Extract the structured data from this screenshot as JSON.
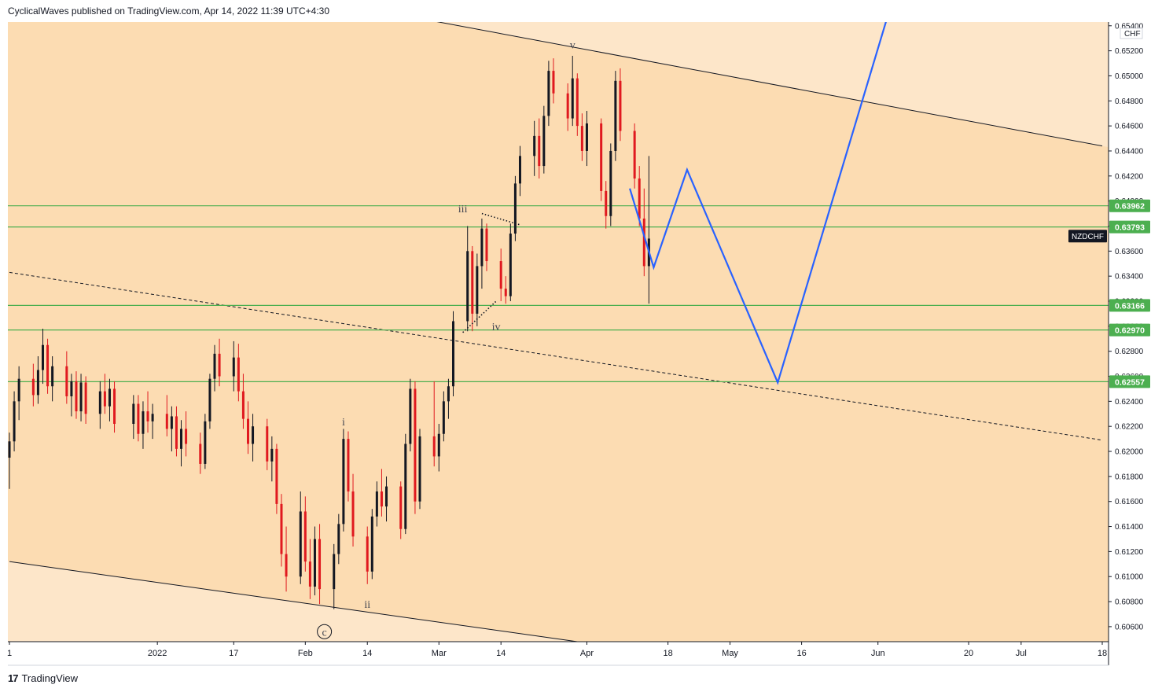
{
  "header": {
    "publisher_line": "CyclicalWaves published on TradingView.com, Apr 14, 2022 11:39 UTC+4:30"
  },
  "footer": {
    "logo_glyph": "17",
    "brand": "TradingView"
  },
  "colors": {
    "background_inside": "#fcdcb2",
    "background_outside": "#fde6c9",
    "candle_up": "#131722",
    "candle_down": "#e0191f",
    "hline": "#4caf50",
    "projection": "#2962ff",
    "channel": "#131722"
  },
  "chart_data": {
    "type": "candlestick",
    "symbol": "NZDCHF",
    "currency": "CHF",
    "ylim": [
      0.6048,
      0.6543
    ],
    "y_ticks": [
      "0.60600",
      "0.60800",
      "0.61000",
      "0.61200",
      "0.61400",
      "0.61600",
      "0.61800",
      "0.62000",
      "0.62200",
      "0.62400",
      "0.62600",
      "0.62800",
      "0.63000",
      "0.63200",
      "0.63400",
      "0.63600",
      "0.63800",
      "0.64000",
      "0.64200",
      "0.64400",
      "0.64600",
      "0.64800",
      "0.65000",
      "0.65200",
      "0.65400"
    ],
    "x_ticks": [
      {
        "label": "1",
        "date": "2021-12-01"
      },
      {
        "label": "2022",
        "date": "2022-01-01"
      },
      {
        "label": "17",
        "date": "2022-01-17"
      },
      {
        "label": "Feb",
        "date": "2022-02-01"
      },
      {
        "label": "14",
        "date": "2022-02-14"
      },
      {
        "label": "Mar",
        "date": "2022-03-01"
      },
      {
        "label": "14",
        "date": "2022-03-14"
      },
      {
        "label": "Apr",
        "date": "2022-04-01"
      },
      {
        "label": "18",
        "date": "2022-04-18"
      },
      {
        "label": "May",
        "date": "2022-05-01"
      },
      {
        "label": "16",
        "date": "2022-05-16"
      },
      {
        "label": "Jun",
        "date": "2022-06-01"
      },
      {
        "label": "20",
        "date": "2022-06-20"
      },
      {
        "label": "Jul",
        "date": "2022-07-01"
      },
      {
        "label": "18",
        "date": "2022-07-18"
      }
    ],
    "horizontal_levels": [
      {
        "value": 0.63962,
        "label": "0.63962"
      },
      {
        "value": 0.63793,
        "label": "0.63793"
      },
      {
        "value": 0.63166,
        "label": "0.63166"
      },
      {
        "value": 0.6297,
        "label": "0.62970"
      },
      {
        "value": 0.62557,
        "label": "0.62557"
      }
    ],
    "symbol_label_value": 0.6372,
    "channel_upper": [
      {
        "date": "2022-01-01",
        "price": 0.6585
      },
      {
        "date": "2022-07-18",
        "price": 0.6444
      }
    ],
    "channel_lower": [
      {
        "date": "2021-12-01",
        "price": 0.6112
      },
      {
        "date": "2022-03-30",
        "price": 0.6048
      }
    ],
    "dashed_trend": [
      {
        "date": "2021-12-01",
        "price": 0.6343
      },
      {
        "date": "2022-07-18",
        "price": 0.6209
      }
    ],
    "triangle_lines": [
      {
        "points": [
          {
            "date": "2022-03-10",
            "price": 0.639
          },
          {
            "date": "2022-03-18",
            "price": 0.6381
          }
        ]
      },
      {
        "points": [
          {
            "date": "2022-03-06",
            "price": 0.6295
          },
          {
            "date": "2022-03-13",
            "price": 0.632
          }
        ]
      }
    ],
    "projection": [
      {
        "date": "2022-04-10",
        "price": 0.641
      },
      {
        "date": "2022-04-15",
        "price": 0.6347
      },
      {
        "date": "2022-04-22",
        "price": 0.6425
      },
      {
        "date": "2022-05-11",
        "price": 0.6255
      },
      {
        "date": "2022-06-04",
        "price": 0.656
      }
    ],
    "wave_labels": [
      {
        "text": "v",
        "date": "2022-03-29",
        "price": 0.6525,
        "style": "plain"
      },
      {
        "text": "iii",
        "date": "2022-03-06",
        "price": 0.6394,
        "style": "plain"
      },
      {
        "text": "iv",
        "date": "2022-03-13",
        "price": 0.63,
        "style": "plain"
      },
      {
        "text": "i",
        "date": "2022-02-09",
        "price": 0.6224,
        "style": "plain"
      },
      {
        "text": "ii",
        "date": "2022-02-14",
        "price": 0.6078,
        "style": "plain"
      },
      {
        "text": "c",
        "date": "2022-02-05",
        "price": 0.6056,
        "style": "circled"
      }
    ],
    "candles": [
      {
        "date": "2021-12-01",
        "o": 0.6195,
        "h": 0.6215,
        "l": 0.617,
        "c": 0.6208
      },
      {
        "date": "2021-12-02",
        "o": 0.6208,
        "h": 0.6248,
        "l": 0.62,
        "c": 0.624
      },
      {
        "date": "2021-12-03",
        "o": 0.624,
        "h": 0.6268,
        "l": 0.6225,
        "c": 0.6258
      },
      {
        "date": "2021-12-06",
        "o": 0.6258,
        "h": 0.627,
        "l": 0.6236,
        "c": 0.6245
      },
      {
        "date": "2021-12-07",
        "o": 0.6245,
        "h": 0.6276,
        "l": 0.6238,
        "c": 0.6265
      },
      {
        "date": "2021-12-08",
        "o": 0.6265,
        "h": 0.6298,
        "l": 0.6254,
        "c": 0.6285
      },
      {
        "date": "2021-12-09",
        "o": 0.6285,
        "h": 0.629,
        "l": 0.6246,
        "c": 0.6252
      },
      {
        "date": "2021-12-10",
        "o": 0.6252,
        "h": 0.6276,
        "l": 0.624,
        "c": 0.6268
      },
      {
        "date": "2021-12-13",
        "o": 0.6268,
        "h": 0.628,
        "l": 0.6238,
        "c": 0.6244
      },
      {
        "date": "2021-12-14",
        "o": 0.6244,
        "h": 0.6262,
        "l": 0.6228,
        "c": 0.6256
      },
      {
        "date": "2021-12-15",
        "o": 0.6256,
        "h": 0.6264,
        "l": 0.6226,
        "c": 0.6232
      },
      {
        "date": "2021-12-16",
        "o": 0.6232,
        "h": 0.6262,
        "l": 0.6224,
        "c": 0.6255
      },
      {
        "date": "2021-12-17",
        "o": 0.6255,
        "h": 0.626,
        "l": 0.6222,
        "c": 0.623
      },
      {
        "date": "2021-12-20",
        "o": 0.623,
        "h": 0.6256,
        "l": 0.6218,
        "c": 0.6248
      },
      {
        "date": "2021-12-21",
        "o": 0.6248,
        "h": 0.6262,
        "l": 0.623,
        "c": 0.6236
      },
      {
        "date": "2021-12-22",
        "o": 0.6236,
        "h": 0.6258,
        "l": 0.6224,
        "c": 0.625
      },
      {
        "date": "2021-12-23",
        "o": 0.625,
        "h": 0.6256,
        "l": 0.6215,
        "c": 0.6222
      },
      {
        "date": "2021-12-27",
        "o": 0.6222,
        "h": 0.6245,
        "l": 0.621,
        "c": 0.6238
      },
      {
        "date": "2021-12-28",
        "o": 0.6238,
        "h": 0.6245,
        "l": 0.6208,
        "c": 0.6214
      },
      {
        "date": "2021-12-29",
        "o": 0.6214,
        "h": 0.624,
        "l": 0.6202,
        "c": 0.6232
      },
      {
        "date": "2021-12-30",
        "o": 0.6232,
        "h": 0.6248,
        "l": 0.6215,
        "c": 0.6224
      },
      {
        "date": "2021-12-31",
        "o": 0.6224,
        "h": 0.6238,
        "l": 0.621,
        "c": 0.623
      },
      {
        "date": "2022-01-03",
        "o": 0.623,
        "h": 0.6245,
        "l": 0.6212,
        "c": 0.6218
      },
      {
        "date": "2022-01-04",
        "o": 0.6218,
        "h": 0.6236,
        "l": 0.62,
        "c": 0.6228
      },
      {
        "date": "2022-01-05",
        "o": 0.6228,
        "h": 0.6236,
        "l": 0.6196,
        "c": 0.6202
      },
      {
        "date": "2022-01-06",
        "o": 0.6202,
        "h": 0.6225,
        "l": 0.6188,
        "c": 0.6218
      },
      {
        "date": "2022-01-07",
        "o": 0.6218,
        "h": 0.6232,
        "l": 0.6196,
        "c": 0.6206
      },
      {
        "date": "2022-01-10",
        "o": 0.6206,
        "h": 0.6215,
        "l": 0.6182,
        "c": 0.619
      },
      {
        "date": "2022-01-11",
        "o": 0.619,
        "h": 0.623,
        "l": 0.6186,
        "c": 0.6224
      },
      {
        "date": "2022-01-12",
        "o": 0.6224,
        "h": 0.6262,
        "l": 0.6218,
        "c": 0.6258
      },
      {
        "date": "2022-01-13",
        "o": 0.6258,
        "h": 0.6285,
        "l": 0.6248,
        "c": 0.6278
      },
      {
        "date": "2022-01-14",
        "o": 0.6278,
        "h": 0.629,
        "l": 0.6252,
        "c": 0.626
      },
      {
        "date": "2022-01-17",
        "o": 0.626,
        "h": 0.6288,
        "l": 0.6248,
        "c": 0.6275
      },
      {
        "date": "2022-01-18",
        "o": 0.6275,
        "h": 0.6286,
        "l": 0.624,
        "c": 0.6248
      },
      {
        "date": "2022-01-19",
        "o": 0.6248,
        "h": 0.6262,
        "l": 0.6218,
        "c": 0.6226
      },
      {
        "date": "2022-01-20",
        "o": 0.6226,
        "h": 0.624,
        "l": 0.6198,
        "c": 0.6206
      },
      {
        "date": "2022-01-21",
        "o": 0.6206,
        "h": 0.623,
        "l": 0.6192,
        "c": 0.622
      },
      {
        "date": "2022-01-24",
        "o": 0.622,
        "h": 0.6226,
        "l": 0.6185,
        "c": 0.6192
      },
      {
        "date": "2022-01-25",
        "o": 0.6192,
        "h": 0.6212,
        "l": 0.6176,
        "c": 0.6202
      },
      {
        "date": "2022-01-26",
        "o": 0.6202,
        "h": 0.6206,
        "l": 0.615,
        "c": 0.6158
      },
      {
        "date": "2022-01-27",
        "o": 0.6158,
        "h": 0.6166,
        "l": 0.6108,
        "c": 0.6118
      },
      {
        "date": "2022-01-28",
        "o": 0.6118,
        "h": 0.614,
        "l": 0.6088,
        "c": 0.61
      },
      {
        "date": "2022-01-31",
        "o": 0.61,
        "h": 0.6168,
        "l": 0.6094,
        "c": 0.6152
      },
      {
        "date": "2022-02-01",
        "o": 0.6152,
        "h": 0.6164,
        "l": 0.6104,
        "c": 0.6112
      },
      {
        "date": "2022-02-02",
        "o": 0.6112,
        "h": 0.613,
        "l": 0.6082,
        "c": 0.6092
      },
      {
        "date": "2022-02-03",
        "o": 0.6092,
        "h": 0.614,
        "l": 0.6085,
        "c": 0.613
      },
      {
        "date": "2022-02-04",
        "o": 0.613,
        "h": 0.6142,
        "l": 0.6078,
        "c": 0.609
      },
      {
        "date": "2022-02-07",
        "o": 0.609,
        "h": 0.6126,
        "l": 0.6074,
        "c": 0.6118
      },
      {
        "date": "2022-02-08",
        "o": 0.6118,
        "h": 0.615,
        "l": 0.611,
        "c": 0.6142
      },
      {
        "date": "2022-02-09",
        "o": 0.6142,
        "h": 0.6218,
        "l": 0.6136,
        "c": 0.621
      },
      {
        "date": "2022-02-10",
        "o": 0.621,
        "h": 0.6216,
        "l": 0.616,
        "c": 0.6168
      },
      {
        "date": "2022-02-11",
        "o": 0.6168,
        "h": 0.6182,
        "l": 0.6124,
        "c": 0.6132
      },
      {
        "date": "2022-02-14",
        "o": 0.6132,
        "h": 0.614,
        "l": 0.6094,
        "c": 0.6104
      },
      {
        "date": "2022-02-15",
        "o": 0.6104,
        "h": 0.6154,
        "l": 0.6098,
        "c": 0.6148
      },
      {
        "date": "2022-02-16",
        "o": 0.6148,
        "h": 0.6176,
        "l": 0.614,
        "c": 0.6168
      },
      {
        "date": "2022-02-17",
        "o": 0.6168,
        "h": 0.6186,
        "l": 0.6148,
        "c": 0.6156
      },
      {
        "date": "2022-02-18",
        "o": 0.6156,
        "h": 0.618,
        "l": 0.6144,
        "c": 0.6172
      },
      {
        "date": "2022-02-21",
        "o": 0.6172,
        "h": 0.6176,
        "l": 0.613,
        "c": 0.6138
      },
      {
        "date": "2022-02-22",
        "o": 0.6138,
        "h": 0.6214,
        "l": 0.6134,
        "c": 0.6206
      },
      {
        "date": "2022-02-23",
        "o": 0.6206,
        "h": 0.6258,
        "l": 0.62,
        "c": 0.625
      },
      {
        "date": "2022-02-24",
        "o": 0.625,
        "h": 0.6256,
        "l": 0.615,
        "c": 0.616
      },
      {
        "date": "2022-02-25",
        "o": 0.616,
        "h": 0.6218,
        "l": 0.6154,
        "c": 0.6212
      },
      {
        "date": "2022-02-28",
        "o": 0.6212,
        "h": 0.6256,
        "l": 0.6188,
        "c": 0.6196
      },
      {
        "date": "2022-03-01",
        "o": 0.6196,
        "h": 0.6222,
        "l": 0.6184,
        "c": 0.6214
      },
      {
        "date": "2022-03-02",
        "o": 0.6214,
        "h": 0.6248,
        "l": 0.6208,
        "c": 0.624
      },
      {
        "date": "2022-03-03",
        "o": 0.624,
        "h": 0.6258,
        "l": 0.6226,
        "c": 0.6252
      },
      {
        "date": "2022-03-04",
        "o": 0.6252,
        "h": 0.6312,
        "l": 0.6244,
        "c": 0.6304
      },
      {
        "date": "2022-03-07",
        "o": 0.6304,
        "h": 0.638,
        "l": 0.6296,
        "c": 0.636
      },
      {
        "date": "2022-03-08",
        "o": 0.636,
        "h": 0.6364,
        "l": 0.6296,
        "c": 0.631
      },
      {
        "date": "2022-03-09",
        "o": 0.631,
        "h": 0.6358,
        "l": 0.63,
        "c": 0.6348
      },
      {
        "date": "2022-03-10",
        "o": 0.6348,
        "h": 0.6386,
        "l": 0.633,
        "c": 0.6378
      },
      {
        "date": "2022-03-11",
        "o": 0.6378,
        "h": 0.6382,
        "l": 0.6344,
        "c": 0.6352
      },
      {
        "date": "2022-03-14",
        "o": 0.6352,
        "h": 0.6362,
        "l": 0.632,
        "c": 0.633
      },
      {
        "date": "2022-03-15",
        "o": 0.633,
        "h": 0.634,
        "l": 0.6318,
        "c": 0.6324
      },
      {
        "date": "2022-03-16",
        "o": 0.6324,
        "h": 0.6382,
        "l": 0.632,
        "c": 0.6374
      },
      {
        "date": "2022-03-17",
        "o": 0.6374,
        "h": 0.642,
        "l": 0.6368,
        "c": 0.6414
      },
      {
        "date": "2022-03-18",
        "o": 0.6414,
        "h": 0.6444,
        "l": 0.6404,
        "c": 0.6436
      },
      {
        "date": "2022-03-21",
        "o": 0.6436,
        "h": 0.6464,
        "l": 0.642,
        "c": 0.6452
      },
      {
        "date": "2022-03-22",
        "o": 0.6452,
        "h": 0.6466,
        "l": 0.6418,
        "c": 0.6428
      },
      {
        "date": "2022-03-23",
        "o": 0.6428,
        "h": 0.6476,
        "l": 0.6422,
        "c": 0.6468
      },
      {
        "date": "2022-03-24",
        "o": 0.6468,
        "h": 0.6512,
        "l": 0.646,
        "c": 0.6504
      },
      {
        "date": "2022-03-25",
        "o": 0.6504,
        "h": 0.6514,
        "l": 0.6478,
        "c": 0.6486
      },
      {
        "date": "2022-03-28",
        "o": 0.6486,
        "h": 0.6494,
        "l": 0.6456,
        "c": 0.6466
      },
      {
        "date": "2022-03-29",
        "o": 0.6466,
        "h": 0.6516,
        "l": 0.646,
        "c": 0.6498
      },
      {
        "date": "2022-03-30",
        "o": 0.6498,
        "h": 0.6502,
        "l": 0.6452,
        "c": 0.646
      },
      {
        "date": "2022-03-31",
        "o": 0.646,
        "h": 0.647,
        "l": 0.6432,
        "c": 0.644
      },
      {
        "date": "2022-04-01",
        "o": 0.644,
        "h": 0.6472,
        "l": 0.6428,
        "c": 0.6462
      },
      {
        "date": "2022-04-04",
        "o": 0.6462,
        "h": 0.6466,
        "l": 0.64,
        "c": 0.6408
      },
      {
        "date": "2022-04-05",
        "o": 0.6408,
        "h": 0.6416,
        "l": 0.6378,
        "c": 0.6388
      },
      {
        "date": "2022-04-06",
        "o": 0.6388,
        "h": 0.6446,
        "l": 0.638,
        "c": 0.644
      },
      {
        "date": "2022-04-07",
        "o": 0.644,
        "h": 0.6504,
        "l": 0.6432,
        "c": 0.6496
      },
      {
        "date": "2022-04-08",
        "o": 0.6496,
        "h": 0.6506,
        "l": 0.6448,
        "c": 0.6456
      },
      {
        "date": "2022-04-11",
        "o": 0.6456,
        "h": 0.6462,
        "l": 0.641,
        "c": 0.6418
      },
      {
        "date": "2022-04-12",
        "o": 0.6418,
        "h": 0.6428,
        "l": 0.638,
        "c": 0.6386
      },
      {
        "date": "2022-04-13",
        "o": 0.6386,
        "h": 0.641,
        "l": 0.634,
        "c": 0.6348
      },
      {
        "date": "2022-04-14",
        "o": 0.6348,
        "h": 0.6436,
        "l": 0.6318,
        "c": 0.637
      }
    ]
  }
}
